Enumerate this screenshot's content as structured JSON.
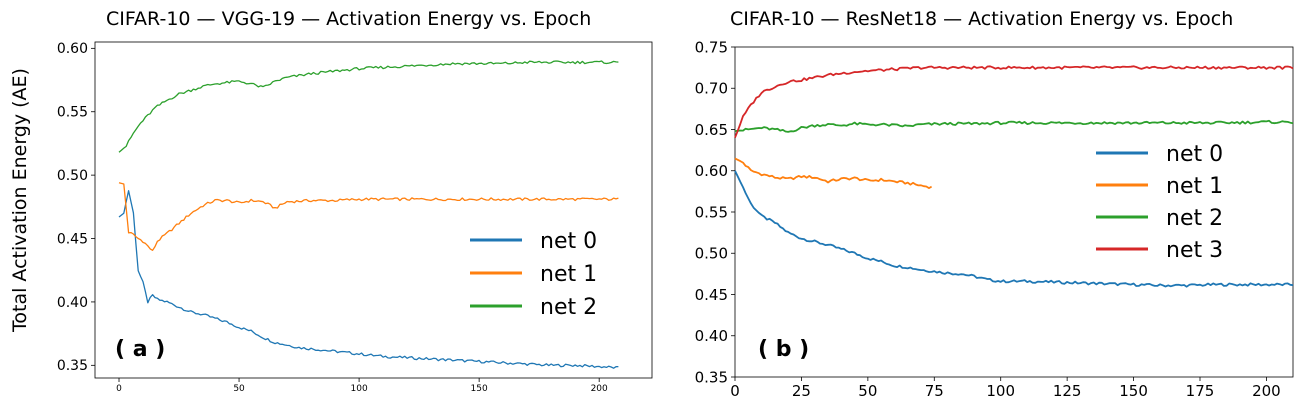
{
  "ylabel_shared": "Total Activation Energy (AE)",
  "chart_data": [
    {
      "type": "line",
      "title": "CIFAR-10 — VGG-19 — Activation Energy vs. Epoch",
      "panel_label": "( a )",
      "xlabel": "",
      "ylabel": "Total Activation Energy (AE)",
      "xlim": [
        -10,
        222
      ],
      "ylim": [
        0.34,
        0.605
      ],
      "xticks": [
        0,
        50,
        100,
        150,
        200
      ],
      "yticks": [
        0.35,
        0.4,
        0.45,
        0.5,
        0.55,
        0.6
      ],
      "ytick_labels": [
        "0.35",
        "0.40",
        "0.45",
        "0.50",
        "0.55",
        "0.60"
      ],
      "legend_position": "center-right",
      "series": [
        {
          "name": "net 0",
          "color": "#1f77b4",
          "points": [
            [
              0,
              0.467
            ],
            [
              2,
              0.47
            ],
            [
              4,
              0.488
            ],
            [
              6,
              0.47
            ],
            [
              8,
              0.425
            ],
            [
              10,
              0.415
            ],
            [
              12,
              0.4
            ],
            [
              14,
              0.405
            ],
            [
              16,
              0.402
            ],
            [
              20,
              0.4
            ],
            [
              25,
              0.396
            ],
            [
              30,
              0.392
            ],
            [
              35,
              0.39
            ],
            [
              40,
              0.387
            ],
            [
              45,
              0.384
            ],
            [
              50,
              0.38
            ],
            [
              55,
              0.377
            ],
            [
              60,
              0.372
            ],
            [
              65,
              0.368
            ],
            [
              70,
              0.366
            ],
            [
              75,
              0.364
            ],
            [
              80,
              0.363
            ],
            [
              90,
              0.361
            ],
            [
              100,
              0.359
            ],
            [
              110,
              0.357
            ],
            [
              120,
              0.356
            ],
            [
              130,
              0.355
            ],
            [
              140,
              0.354
            ],
            [
              150,
              0.353
            ],
            [
              160,
              0.352
            ],
            [
              170,
              0.351
            ],
            [
              180,
              0.35
            ],
            [
              190,
              0.35
            ],
            [
              200,
              0.349
            ],
            [
              208,
              0.348
            ]
          ]
        },
        {
          "name": "net 1",
          "color": "#ff7f0e",
          "points": [
            [
              0,
              0.494
            ],
            [
              2,
              0.493
            ],
            [
              4,
              0.455
            ],
            [
              6,
              0.453
            ],
            [
              8,
              0.45
            ],
            [
              10,
              0.448
            ],
            [
              12,
              0.444
            ],
            [
              14,
              0.44
            ],
            [
              16,
              0.448
            ],
            [
              20,
              0.454
            ],
            [
              25,
              0.462
            ],
            [
              30,
              0.47
            ],
            [
              35,
              0.476
            ],
            [
              40,
              0.48
            ],
            [
              45,
              0.48
            ],
            [
              50,
              0.478
            ],
            [
              55,
              0.48
            ],
            [
              60,
              0.479
            ],
            [
              65,
              0.474
            ],
            [
              70,
              0.479
            ],
            [
              80,
              0.48
            ],
            [
              90,
              0.48
            ],
            [
              100,
              0.481
            ],
            [
              120,
              0.481
            ],
            [
              140,
              0.481
            ],
            [
              160,
              0.481
            ],
            [
              180,
              0.481
            ],
            [
              200,
              0.481
            ],
            [
              208,
              0.481
            ]
          ]
        },
        {
          "name": "net 2",
          "color": "#2ca02c",
          "points": [
            [
              0,
              0.518
            ],
            [
              3,
              0.523
            ],
            [
              6,
              0.533
            ],
            [
              9,
              0.541
            ],
            [
              12,
              0.547
            ],
            [
              15,
              0.553
            ],
            [
              20,
              0.559
            ],
            [
              25,
              0.564
            ],
            [
              30,
              0.567
            ],
            [
              35,
              0.57
            ],
            [
              40,
              0.572
            ],
            [
              45,
              0.573
            ],
            [
              50,
              0.574
            ],
            [
              55,
              0.572
            ],
            [
              60,
              0.569
            ],
            [
              65,
              0.574
            ],
            [
              70,
              0.577
            ],
            [
              80,
              0.58
            ],
            [
              90,
              0.582
            ],
            [
              100,
              0.584
            ],
            [
              110,
              0.585
            ],
            [
              120,
              0.586
            ],
            [
              130,
              0.587
            ],
            [
              140,
              0.588
            ],
            [
              150,
              0.588
            ],
            [
              160,
              0.588
            ],
            [
              170,
              0.589
            ],
            [
              180,
              0.589
            ],
            [
              190,
              0.589
            ],
            [
              200,
              0.589
            ],
            [
              208,
              0.589
            ]
          ]
        }
      ]
    },
    {
      "type": "line",
      "title": "CIFAR-10 — ResNet18 — Activation Energy vs. Epoch",
      "panel_label": "( b )",
      "xlabel": "",
      "ylabel": "",
      "xlim": [
        0,
        210
      ],
      "ylim": [
        0.35,
        0.75
      ],
      "xticks": [
        0,
        25,
        50,
        75,
        100,
        125,
        150,
        175,
        200
      ],
      "yticks": [
        0.35,
        0.4,
        0.45,
        0.5,
        0.55,
        0.6,
        0.65,
        0.7,
        0.75
      ],
      "ytick_labels": [
        "0.35",
        "0.40",
        "0.45",
        "0.50",
        "0.55",
        "0.60",
        "0.65",
        "0.70",
        "0.75"
      ],
      "legend_position": "center-right",
      "series": [
        {
          "name": "net 0",
          "color": "#1f77b4",
          "points": [
            [
              0,
              0.6
            ],
            [
              3,
              0.58
            ],
            [
              6,
              0.56
            ],
            [
              10,
              0.545
            ],
            [
              15,
              0.537
            ],
            [
              20,
              0.525
            ],
            [
              25,
              0.518
            ],
            [
              30,
              0.514
            ],
            [
              35,
              0.51
            ],
            [
              40,
              0.505
            ],
            [
              45,
              0.5
            ],
            [
              50,
              0.494
            ],
            [
              55,
              0.49
            ],
            [
              60,
              0.485
            ],
            [
              65,
              0.483
            ],
            [
              70,
              0.48
            ],
            [
              75,
              0.478
            ],
            [
              80,
              0.476
            ],
            [
              85,
              0.475
            ],
            [
              90,
              0.472
            ],
            [
              95,
              0.468
            ],
            [
              100,
              0.466
            ],
            [
              110,
              0.466
            ],
            [
              120,
              0.465
            ],
            [
              130,
              0.464
            ],
            [
              140,
              0.463
            ],
            [
              150,
              0.462
            ],
            [
              160,
              0.461
            ],
            [
              170,
              0.461
            ],
            [
              180,
              0.462
            ],
            [
              190,
              0.462
            ],
            [
              200,
              0.462
            ],
            [
              210,
              0.462
            ]
          ]
        },
        {
          "name": "net 1",
          "color": "#ff7f0e",
          "points": [
            [
              0,
              0.615
            ],
            [
              3,
              0.61
            ],
            [
              6,
              0.6
            ],
            [
              10,
              0.596
            ],
            [
              15,
              0.592
            ],
            [
              20,
              0.59
            ],
            [
              25,
              0.593
            ],
            [
              30,
              0.592
            ],
            [
              35,
              0.587
            ],
            [
              40,
              0.59
            ],
            [
              45,
              0.591
            ],
            [
              50,
              0.588
            ],
            [
              55,
              0.589
            ],
            [
              60,
              0.587
            ],
            [
              65,
              0.585
            ],
            [
              70,
              0.582
            ],
            [
              74,
              0.58
            ]
          ]
        },
        {
          "name": "net 2",
          "color": "#2ca02c",
          "points": [
            [
              0,
              0.648
            ],
            [
              5,
              0.65
            ],
            [
              10,
              0.652
            ],
            [
              15,
              0.65
            ],
            [
              20,
              0.647
            ],
            [
              25,
              0.652
            ],
            [
              30,
              0.655
            ],
            [
              35,
              0.656
            ],
            [
              40,
              0.655
            ],
            [
              45,
              0.657
            ],
            [
              50,
              0.656
            ],
            [
              55,
              0.656
            ],
            [
              60,
              0.655
            ],
            [
              65,
              0.654
            ],
            [
              70,
              0.656
            ],
            [
              80,
              0.657
            ],
            [
              90,
              0.657
            ],
            [
              100,
              0.658
            ],
            [
              120,
              0.658
            ],
            [
              140,
              0.658
            ],
            [
              160,
              0.658
            ],
            [
              180,
              0.658
            ],
            [
              200,
              0.659
            ],
            [
              210,
              0.659
            ]
          ]
        },
        {
          "name": "net 3",
          "color": "#d62728",
          "points": [
            [
              0,
              0.64
            ],
            [
              3,
              0.665
            ],
            [
              6,
              0.68
            ],
            [
              10,
              0.695
            ],
            [
              15,
              0.702
            ],
            [
              20,
              0.708
            ],
            [
              25,
              0.71
            ],
            [
              30,
              0.713
            ],
            [
              35,
              0.716
            ],
            [
              40,
              0.718
            ],
            [
              45,
              0.72
            ],
            [
              50,
              0.721
            ],
            [
              55,
              0.722
            ],
            [
              60,
              0.723
            ],
            [
              65,
              0.724
            ],
            [
              70,
              0.725
            ],
            [
              80,
              0.725
            ],
            [
              100,
              0.725
            ],
            [
              120,
              0.725
            ],
            [
              140,
              0.725
            ],
            [
              160,
              0.725
            ],
            [
              180,
              0.725
            ],
            [
              200,
              0.725
            ],
            [
              210,
              0.725
            ]
          ]
        }
      ]
    }
  ]
}
